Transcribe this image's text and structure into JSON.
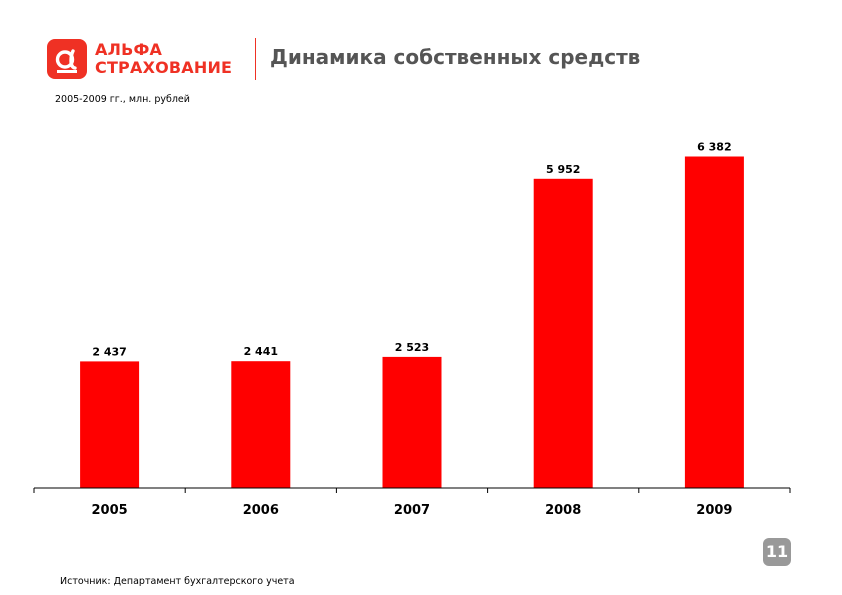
{
  "header": {
    "logo_line1": "АЛЬФА",
    "logo_line2": "СТРАХОВАНИЕ",
    "title": "Динамика собственных средств",
    "subtitle": "2005-2009 гг., млн. рублей"
  },
  "footer": {
    "source": "Источник: Департамент бухгалтерского учета",
    "page_number": "11"
  },
  "colors": {
    "brand": "#ef3124",
    "bar": "#ff0000",
    "title": "#555555",
    "page_badge": "#999999"
  },
  "icons": {
    "logo": "alpha-logo-icon"
  },
  "chart_data": {
    "type": "bar",
    "categories": [
      "2005",
      "2006",
      "2007",
      "2008",
      "2009"
    ],
    "values": [
      2437,
      2441,
      2523,
      5952,
      6382
    ],
    "value_labels": [
      "2 437",
      "2 441",
      "2 523",
      "5 952",
      "6 382"
    ],
    "ylim": [
      0,
      7700
    ],
    "grid": false,
    "legend": "none"
  }
}
